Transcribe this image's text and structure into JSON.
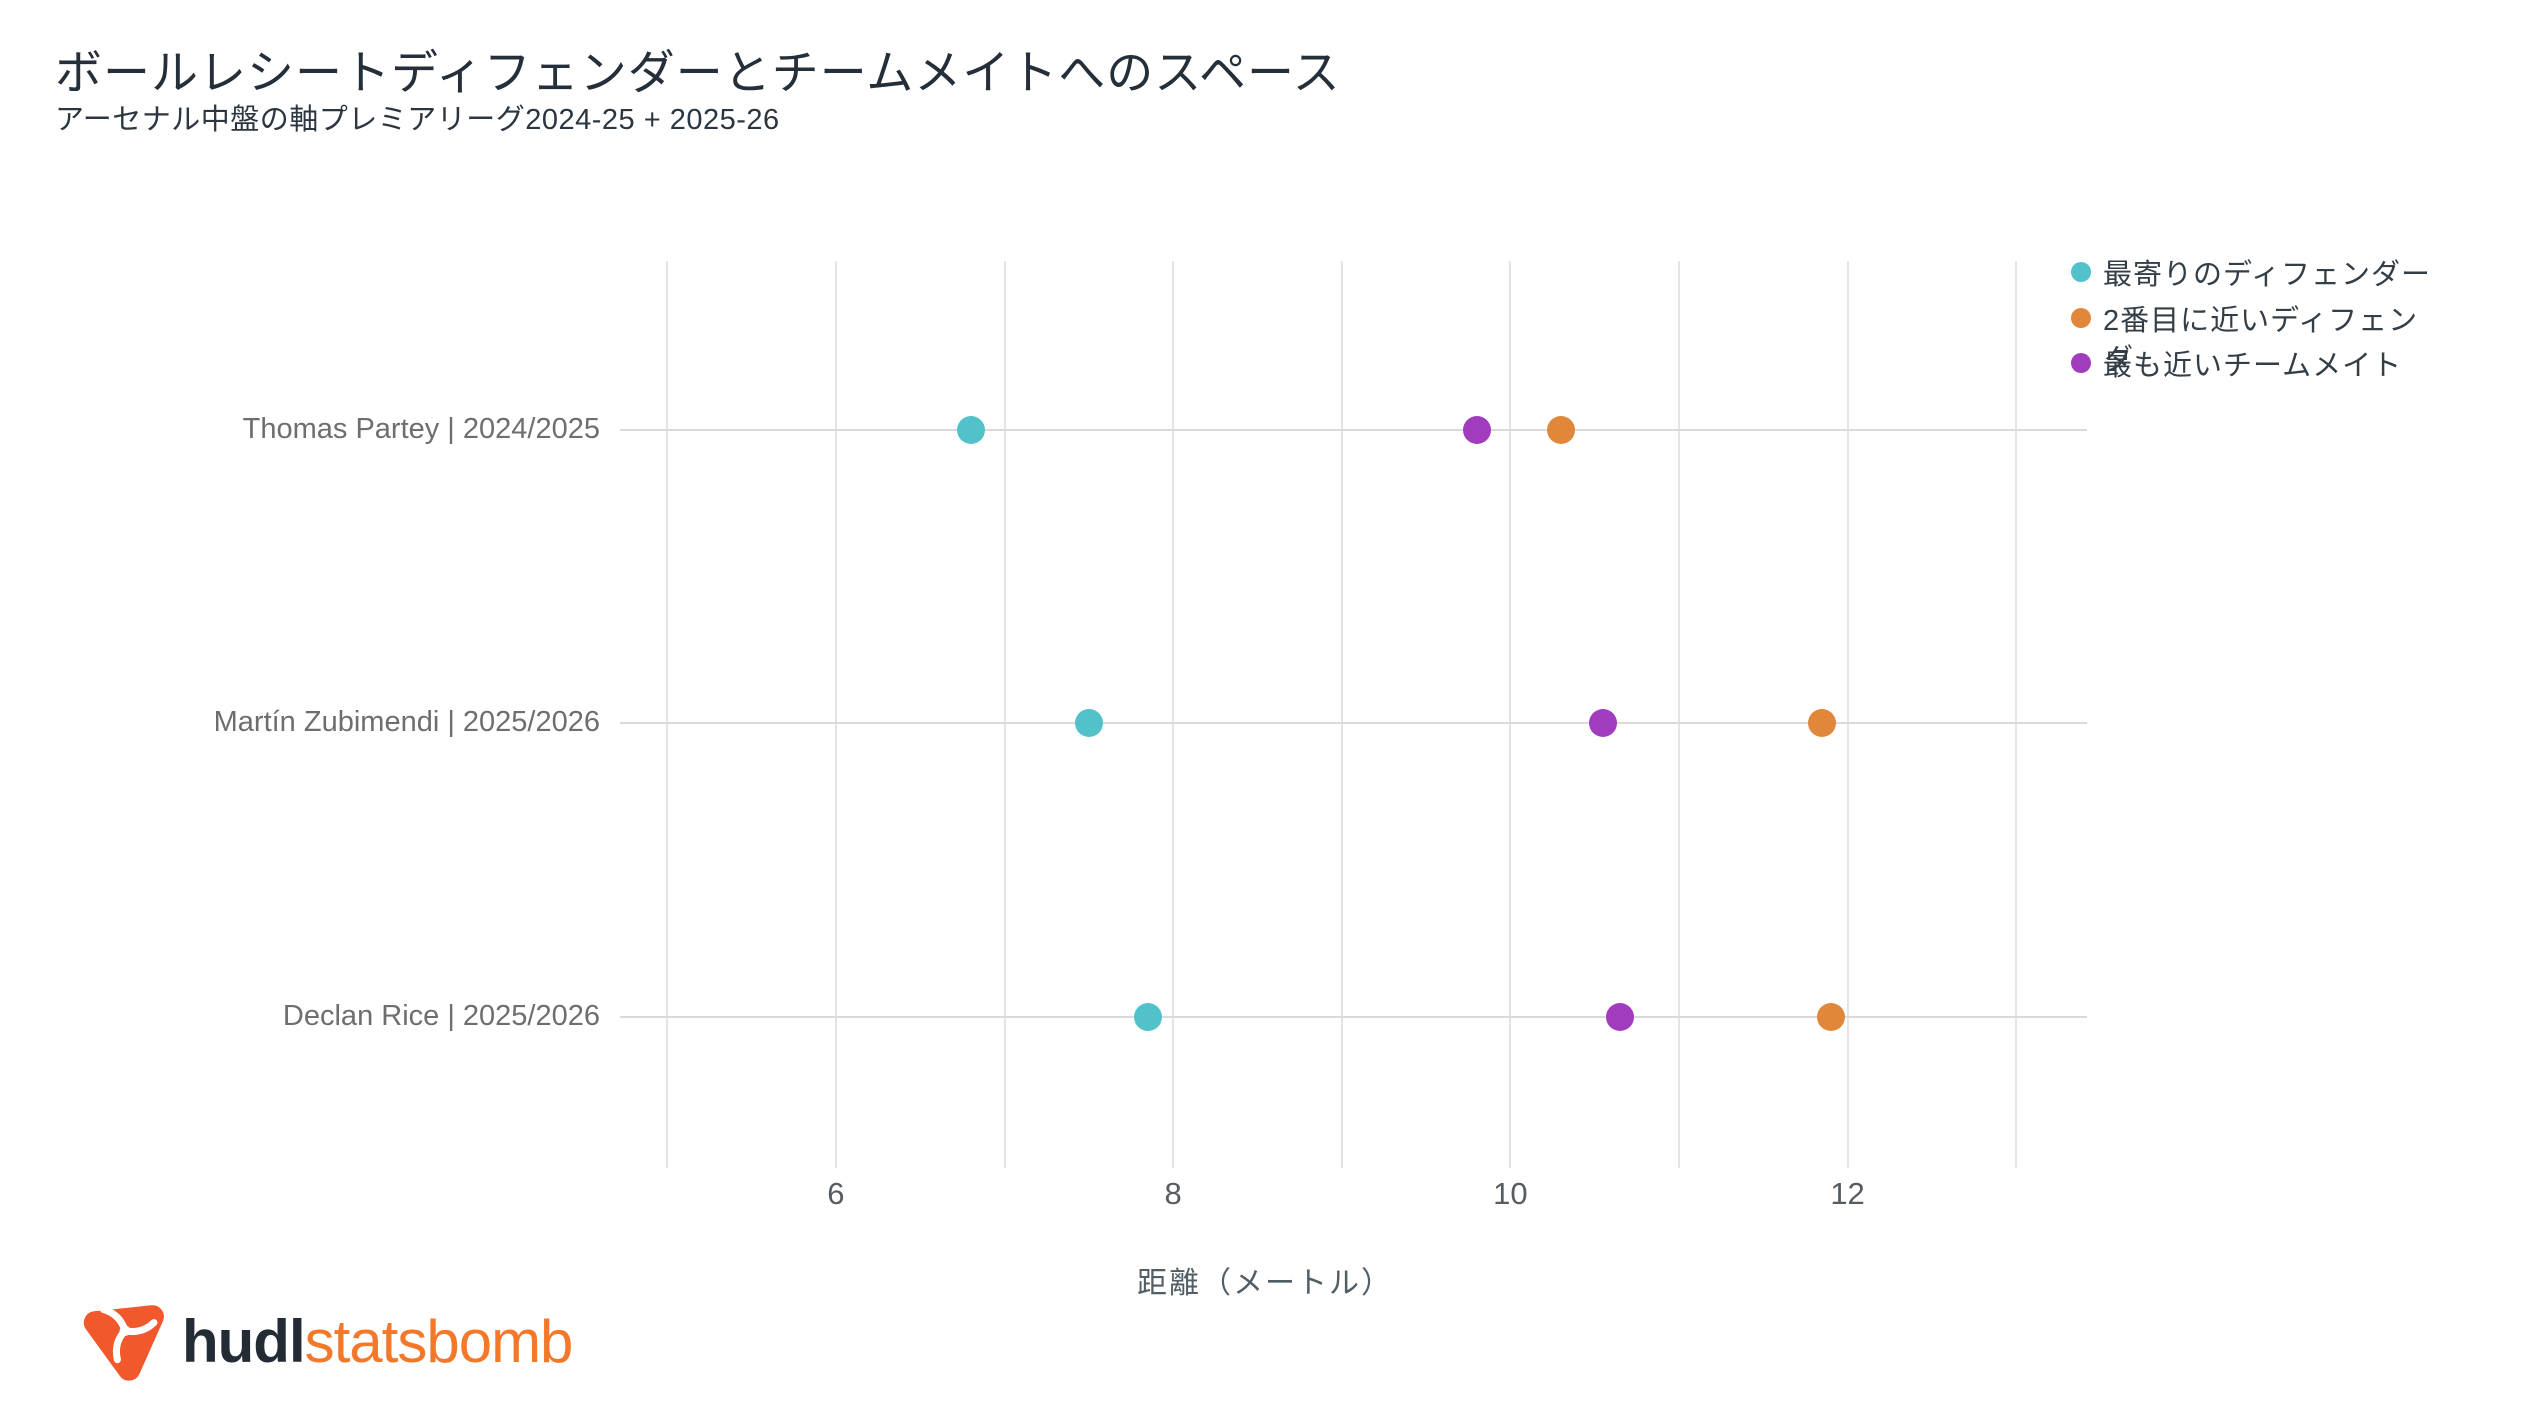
{
  "title": "ボールレシートディフェンダーとチームメイトへのスペース",
  "subtitle": "アーセナル中盤の軸プレミアリーグ2024-25 + 2025-26",
  "legend": {
    "position": "top-right",
    "items": [
      {
        "label": "最寄りのディフェンダー",
        "color": "#52C2CA"
      },
      {
        "label": "2番目に近いディフェン",
        "color": "#E0873B"
      },
      {
        "label": "最も近いチームメイト",
        "color": "#A13CBF"
      }
    ],
    "overflow_char": "ダ"
  },
  "footer": {
    "brand_bold": "hudl",
    "brand_light": "statsbomb",
    "icon": "hudl-statsbomb-swirl",
    "icon_color": "#F1582B"
  },
  "colors": {
    "background": "#FFFFFF",
    "title_text": "#242F3A",
    "row_label_text": "#6E6E6E",
    "tick_text": "#565C61",
    "gridline_vertical": "#E4E4E4",
    "gridline_horizontal": "#DADADA",
    "nearest_defender": "#52C2CA",
    "second_defender": "#E0873B",
    "nearest_teammate": "#A13CBF"
  },
  "chart_data": {
    "type": "scatter",
    "subtype": "horizontal-dot-plot",
    "title": "ボールレシートディフェンダーとチームメイトへのスペース",
    "subtitle": "アーセナル中盤の軸プレミアリーグ2024-25 + 2025-26",
    "xlabel": "距離（メートル）",
    "ylabel": "",
    "xlim": [
      4.85,
      13.42
    ],
    "x_ticks": [
      6,
      8,
      10,
      12
    ],
    "x_gridlines": [
      5,
      6,
      7,
      8,
      9,
      10,
      11,
      12,
      13
    ],
    "grid": true,
    "legend_position": "top-right",
    "categories": [
      "Thomas Partey | 2024/2025",
      "Martín Zubimendi | 2025/2026",
      "Declan Rice | 2025/2026"
    ],
    "series": [
      {
        "name": "最寄りのディフェンダー",
        "color": "#52C2CA",
        "values": [
          6.8,
          7.5,
          7.85
        ]
      },
      {
        "name": "2番目に近いディフェンダー",
        "color": "#E0873B",
        "values": [
          10.3,
          11.85,
          11.9
        ]
      },
      {
        "name": "最も近いチームメイト",
        "color": "#A13CBF",
        "values": [
          9.8,
          10.55,
          10.65
        ]
      }
    ]
  }
}
